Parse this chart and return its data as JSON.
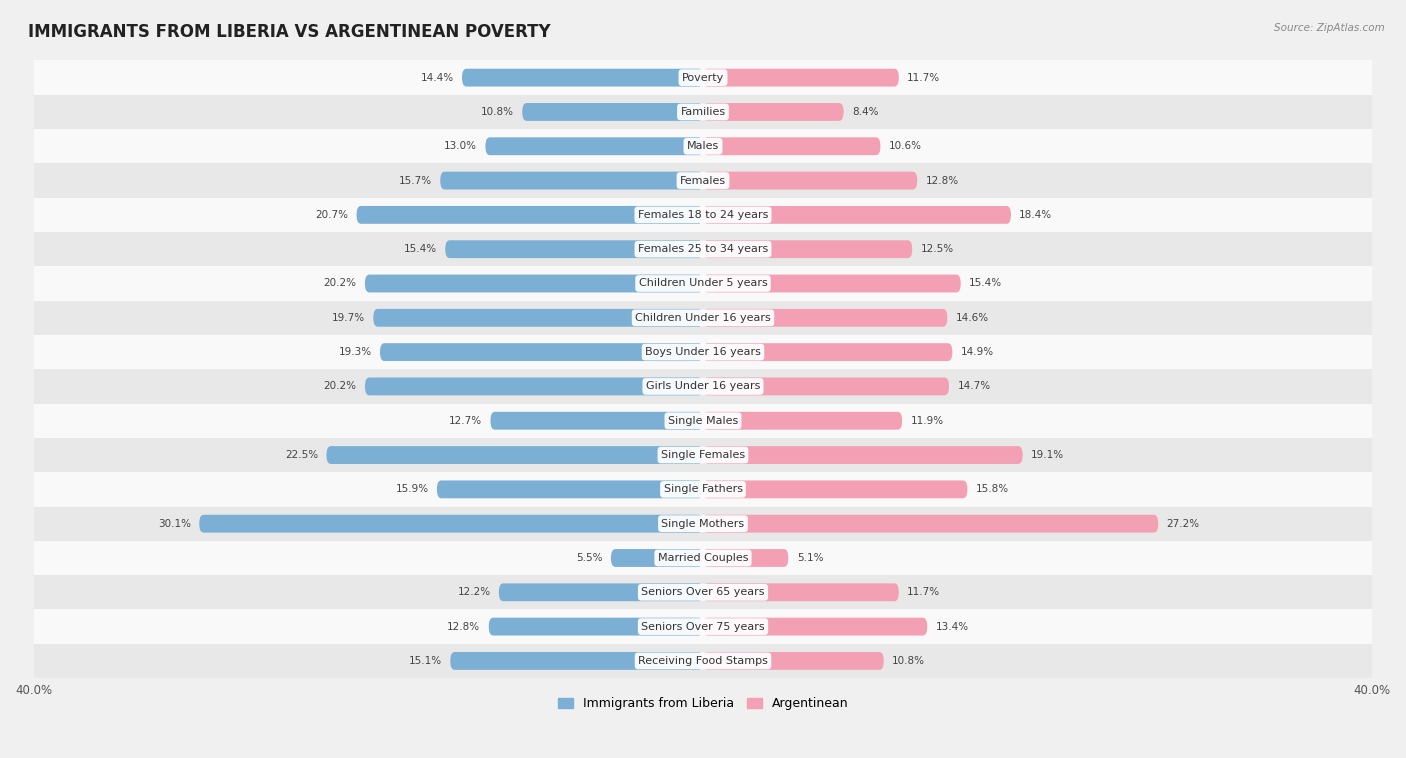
{
  "title": "IMMIGRANTS FROM LIBERIA VS ARGENTINEAN POVERTY",
  "source": "Source: ZipAtlas.com",
  "categories": [
    "Poverty",
    "Families",
    "Males",
    "Females",
    "Females 18 to 24 years",
    "Females 25 to 34 years",
    "Children Under 5 years",
    "Children Under 16 years",
    "Boys Under 16 years",
    "Girls Under 16 years",
    "Single Males",
    "Single Females",
    "Single Fathers",
    "Single Mothers",
    "Married Couples",
    "Seniors Over 65 years",
    "Seniors Over 75 years",
    "Receiving Food Stamps"
  ],
  "liberia_values": [
    14.4,
    10.8,
    13.0,
    15.7,
    20.7,
    15.4,
    20.2,
    19.7,
    19.3,
    20.2,
    12.7,
    22.5,
    15.9,
    30.1,
    5.5,
    12.2,
    12.8,
    15.1
  ],
  "argentina_values": [
    11.7,
    8.4,
    10.6,
    12.8,
    18.4,
    12.5,
    15.4,
    14.6,
    14.9,
    14.7,
    11.9,
    19.1,
    15.8,
    27.2,
    5.1,
    11.7,
    13.4,
    10.8
  ],
  "liberia_color": "#7bafd4",
  "argentina_color": "#f4a0b4",
  "liberia_label": "Immigrants from Liberia",
  "argentina_label": "Argentinean",
  "xlim": 40.0,
  "background_color": "#f0f0f0",
  "row_color_even": "#f9f9f9",
  "row_color_odd": "#e8e8e8",
  "title_fontsize": 12,
  "label_fontsize": 8,
  "value_fontsize": 7.5,
  "bar_height": 0.52
}
